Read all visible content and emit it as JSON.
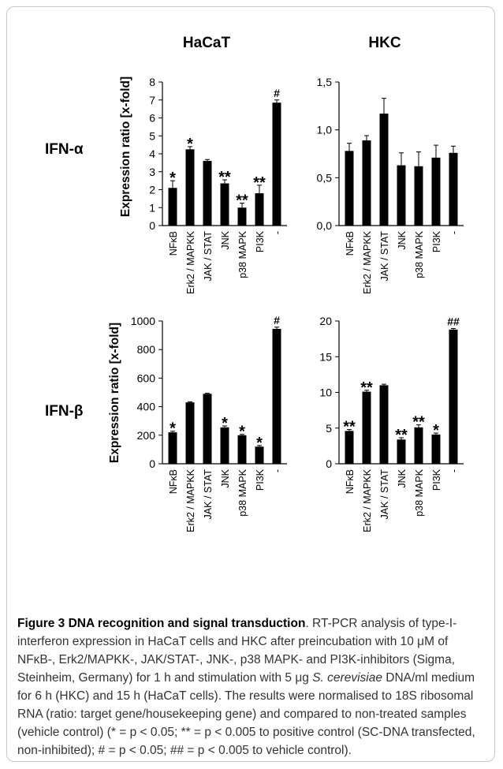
{
  "header": {
    "col_left": "HaCaT",
    "col_right": "HKC",
    "row_top": "IFN-α",
    "row_bottom": "IFN-β"
  },
  "shared": {
    "ylabel": "Expression ratio [x-fold]",
    "categories": [
      "NFκB",
      "Erk2 / MAPKK",
      "JAK / STAT",
      "JNK",
      "p38 MAPK",
      "PI3K",
      "-"
    ]
  },
  "chart_data": [
    {
      "type": "bar",
      "panel": "HaCaT IFN-α",
      "categories": [
        "NFκB",
        "Erk2 / MAPKK",
        "JAK / STAT",
        "JNK",
        "p38 MAPK",
        "PI3K",
        "-"
      ],
      "values": [
        2.1,
        4.25,
        3.6,
        2.35,
        1.0,
        1.8,
        6.85
      ],
      "errors": [
        0.4,
        0.15,
        0.08,
        0.2,
        0.25,
        0.45,
        0.15
      ],
      "annotations": [
        "*",
        "*",
        "",
        "**",
        "**",
        "**",
        "#"
      ],
      "ylabel": "Expression ratio [x-fold]",
      "ylim": [
        0,
        8
      ],
      "ticks": [
        "0",
        "1",
        "2",
        "3",
        "4",
        "5",
        "6",
        "7",
        "8"
      ]
    },
    {
      "type": "bar",
      "panel": "HKC IFN-α",
      "categories": [
        "NFκB",
        "Erk2 / MAPKK",
        "JAK / STAT",
        "JNK",
        "p38 MAPK",
        "PI3K",
        "-"
      ],
      "values": [
        0.78,
        0.89,
        1.17,
        0.63,
        0.62,
        0.71,
        0.76
      ],
      "errors": [
        0.08,
        0.05,
        0.16,
        0.13,
        0.15,
        0.13,
        0.07
      ],
      "annotations": [
        "",
        "",
        "",
        "",
        "",
        "",
        ""
      ],
      "ylabel": "",
      "ylim": [
        0,
        1.5
      ],
      "ticks": [
        "0,0",
        "0,5",
        "1,0",
        "1,5"
      ]
    },
    {
      "type": "bar",
      "panel": "HaCaT IFN-β",
      "categories": [
        "NFκB",
        "Erk2 / MAPKK",
        "JAK / STAT",
        "JNK",
        "p38 MAPK",
        "PI3K",
        "-"
      ],
      "values": [
        220,
        430,
        490,
        255,
        200,
        120,
        945
      ],
      "errors": [
        8,
        4,
        4,
        10,
        6,
        8,
        12
      ],
      "annotations": [
        "*",
        "",
        "",
        "*",
        "*",
        "*",
        "#"
      ],
      "ylabel": "Expression ratio [x-fold]",
      "ylim": [
        0,
        1000
      ],
      "ticks": [
        "0",
        "200",
        "400",
        "600",
        "800",
        "1000"
      ]
    },
    {
      "type": "bar",
      "panel": "HKC IFN-β",
      "categories": [
        "NFκB",
        "Erk2 / MAPKK",
        "JAK / STAT",
        "JNK",
        "p38 MAPK",
        "PI3K",
        "-"
      ],
      "values": [
        4.6,
        10.1,
        11.0,
        3.4,
        5.1,
        4.1,
        18.8
      ],
      "errors": [
        0.2,
        0.2,
        0.15,
        0.25,
        0.35,
        0.2,
        0.15
      ],
      "annotations": [
        "**",
        "**",
        "",
        "**",
        "**",
        "*",
        "##"
      ],
      "ylabel": "",
      "ylim": [
        0,
        20
      ],
      "ticks": [
        "0",
        "5",
        "10",
        "15",
        "20"
      ]
    }
  ],
  "caption": {
    "title": "Figure 3 DNA recognition and signal transduction",
    "text_1": ". RT-PCR analysis of type-I-interferon expression in HaCaT cells and HKC after preincubation with 10 μM of NFκB-, Erk2/MAPKK-, JAK/STAT-, JNK-, p38 MAPK- and PI3K-inhibitors (Sigma, Steinheim, Germany) for 1 h and stimulation with 5 μg ",
    "species": "S. cerevisiae",
    "text_2": " DNA/ml medium for 6 h (HKC) and 15 h (HaCaT cells). The results were normalised to 18S ribosomal RNA (ratio: target gene/housekeeping gene) and compared to non-treated samples (vehicle control) (* = p < 0.05; ** = p < 0.005 to positive control (SC-DNA transfected, non-inhibited); # = p < 0.05; ## = p < 0.005 to vehicle control)."
  }
}
